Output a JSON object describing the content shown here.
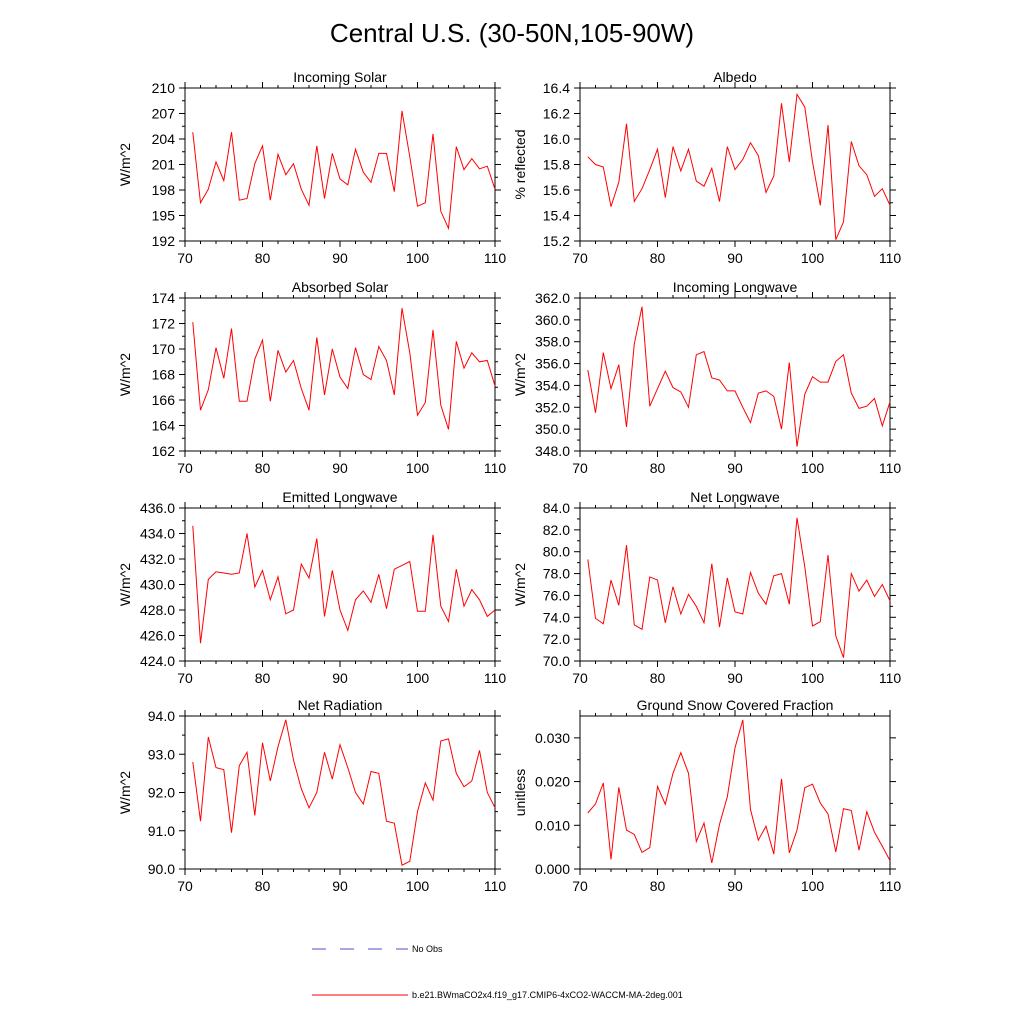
{
  "figure_title": "Central U.S. (30-50N,105-90W)",
  "colors": {
    "series": "#ff0000",
    "obs": "#4d4dcc",
    "frame": "#000000"
  },
  "legend": {
    "obs_label": "No Obs",
    "model_label": "b.e21.BWmaCO2x4.f19_g17.CMIP6-4xCO2-WACCM-MA-2deg.001"
  },
  "chart_data": [
    {
      "type": "line",
      "title": "Incoming Solar",
      "ylabel": "W/m^2",
      "xlim": [
        70,
        110
      ],
      "ylim": [
        192,
        210
      ],
      "yticks": [
        192,
        195,
        198,
        201,
        204,
        207,
        210
      ],
      "yticklabels": [
        "192",
        "195",
        "198",
        "201",
        "204",
        "207",
        "210"
      ],
      "xticks": [
        70,
        80,
        90,
        100,
        110
      ],
      "xticklabels": [
        "70",
        "80",
        "90",
        "100",
        "110"
      ],
      "x": [
        71,
        72,
        73,
        74,
        75,
        76,
        77,
        78,
        79,
        80,
        81,
        82,
        83,
        84,
        85,
        86,
        87,
        88,
        89,
        90,
        91,
        92,
        93,
        94,
        95,
        96,
        97,
        98,
        99,
        100,
        101,
        102,
        103,
        104,
        105,
        106,
        107,
        108,
        109,
        110
      ],
      "series": [
        {
          "name": "b.e21.BWmaCO2x4.f19_g17.CMIP6-4xCO2-WACCM-MA-2deg.001",
          "values": [
            204.8,
            196.5,
            198.1,
            201.3,
            199.1,
            204.8,
            196.8,
            197.0,
            201.1,
            203.2,
            196.8,
            202.2,
            199.8,
            201.1,
            198.1,
            196.2,
            203.2,
            197.0,
            202.3,
            199.3,
            198.6,
            202.8,
            200.1,
            198.9,
            202.3,
            202.3,
            197.8,
            207.3,
            201.9,
            196.1,
            196.5,
            204.6,
            195.5,
            193.5,
            203.1,
            200.4,
            201.7,
            200.5,
            200.8,
            198.1
          ]
        }
      ]
    },
    {
      "type": "line",
      "title": "Albedo",
      "ylabel": "% reflected",
      "xlim": [
        70,
        110
      ],
      "ylim": [
        15.2,
        16.4
      ],
      "yticks": [
        15.2,
        15.4,
        15.6,
        15.8,
        16.0,
        16.2,
        16.4
      ],
      "yticklabels": [
        "15.2",
        "15.4",
        "15.6",
        "15.8",
        "16.0",
        "16.2",
        "16.4"
      ],
      "xticks": [
        70,
        80,
        90,
        100,
        110
      ],
      "xticklabels": [
        "70",
        "80",
        "90",
        "100",
        "110"
      ],
      "x": [
        71,
        72,
        73,
        74,
        75,
        76,
        77,
        78,
        79,
        80,
        81,
        82,
        83,
        84,
        85,
        86,
        87,
        88,
        89,
        90,
        91,
        92,
        93,
        94,
        95,
        96,
        97,
        98,
        99,
        100,
        101,
        102,
        103,
        104,
        105,
        106,
        107,
        108,
        109,
        110
      ],
      "series": [
        {
          "name": "b.e21.BWmaCO2x4.f19_g17.CMIP6-4xCO2-WACCM-MA-2deg.001",
          "values": [
            15.86,
            15.8,
            15.78,
            15.47,
            15.66,
            16.12,
            15.51,
            15.61,
            15.76,
            15.92,
            15.54,
            15.94,
            15.75,
            15.92,
            15.67,
            15.63,
            15.77,
            15.51,
            15.94,
            15.76,
            15.84,
            15.97,
            15.87,
            15.58,
            15.71,
            16.28,
            15.82,
            16.35,
            16.25,
            15.82,
            15.48,
            16.11,
            15.21,
            15.35,
            15.98,
            15.79,
            15.72,
            15.55,
            15.61,
            15.48
          ]
        }
      ]
    },
    {
      "type": "line",
      "title": "Absorbed Solar",
      "ylabel": "W/m^2",
      "xlim": [
        70,
        110
      ],
      "ylim": [
        162,
        174
      ],
      "yticks": [
        162,
        164,
        166,
        168,
        170,
        172,
        174
      ],
      "yticklabels": [
        "162",
        "164",
        "166",
        "168",
        "170",
        "172",
        "174"
      ],
      "xticks": [
        70,
        80,
        90,
        100,
        110
      ],
      "xticklabels": [
        "70",
        "80",
        "90",
        "100",
        "110"
      ],
      "x": [
        71,
        72,
        73,
        74,
        75,
        76,
        77,
        78,
        79,
        80,
        81,
        82,
        83,
        84,
        85,
        86,
        87,
        88,
        89,
        90,
        91,
        92,
        93,
        94,
        95,
        96,
        97,
        98,
        99,
        100,
        101,
        102,
        103,
        104,
        105,
        106,
        107,
        108,
        109,
        110
      ],
      "series": [
        {
          "name": "b.e21.BWmaCO2x4.f19_g17.CMIP6-4xCO2-WACCM-MA-2deg.001",
          "values": [
            172.1,
            165.2,
            166.8,
            170.1,
            167.7,
            171.6,
            165.9,
            165.9,
            169.2,
            170.7,
            165.9,
            169.9,
            168.2,
            169.1,
            166.9,
            165.2,
            170.9,
            166.4,
            170.0,
            167.8,
            166.9,
            170.1,
            168.0,
            167.6,
            170.2,
            169.1,
            166.4,
            173.2,
            169.7,
            164.8,
            165.8,
            171.5,
            165.6,
            163.7,
            170.6,
            168.5,
            169.7,
            169.0,
            169.1,
            167.1
          ]
        }
      ]
    },
    {
      "type": "line",
      "title": "Incoming Longwave",
      "ylabel": "W/m^2",
      "xlim": [
        70,
        110
      ],
      "ylim": [
        348.0,
        362.0
      ],
      "yticks": [
        348,
        350,
        352,
        354,
        356,
        358,
        360,
        362
      ],
      "yticklabels": [
        "348.0",
        "350.0",
        "352.0",
        "354.0",
        "356.0",
        "358.0",
        "360.0",
        "362.0"
      ],
      "xticks": [
        70,
        80,
        90,
        100,
        110
      ],
      "xticklabels": [
        "70",
        "80",
        "90",
        "100",
        "110"
      ],
      "x": [
        71,
        72,
        73,
        74,
        75,
        76,
        77,
        78,
        79,
        80,
        81,
        82,
        83,
        84,
        85,
        86,
        87,
        88,
        89,
        90,
        91,
        92,
        93,
        94,
        95,
        96,
        97,
        98,
        99,
        100,
        101,
        102,
        103,
        104,
        105,
        106,
        107,
        108,
        109,
        110
      ],
      "series": [
        {
          "name": "b.e21.BWmaCO2x4.f19_g17.CMIP6-4xCO2-WACCM-MA-2deg.001",
          "values": [
            355.4,
            351.5,
            357.0,
            353.7,
            355.9,
            350.2,
            357.8,
            361.2,
            352.1,
            353.7,
            355.3,
            353.8,
            353.4,
            352.0,
            356.8,
            357.1,
            354.7,
            354.5,
            353.5,
            353.5,
            352.0,
            350.6,
            353.3,
            353.5,
            353.0,
            350.0,
            356.1,
            348.4,
            353.2,
            354.8,
            354.3,
            354.3,
            356.2,
            356.8,
            353.3,
            351.9,
            352.1,
            352.8,
            350.3,
            352.5
          ]
        }
      ]
    },
    {
      "type": "line",
      "title": "Emitted Longwave",
      "ylabel": "W/m^2",
      "xlim": [
        70,
        110
      ],
      "ylim": [
        424.0,
        436.0
      ],
      "yticks": [
        424,
        426,
        428,
        430,
        432,
        434,
        436
      ],
      "yticklabels": [
        "424.0",
        "426.0",
        "428.0",
        "430.0",
        "432.0",
        "434.0",
        "436.0"
      ],
      "xticks": [
        70,
        80,
        90,
        100,
        110
      ],
      "xticklabels": [
        "70",
        "80",
        "90",
        "100",
        "110"
      ],
      "x": [
        71,
        72,
        73,
        74,
        75,
        76,
        77,
        78,
        79,
        80,
        81,
        82,
        83,
        84,
        85,
        86,
        87,
        88,
        89,
        90,
        91,
        92,
        93,
        94,
        95,
        96,
        97,
        98,
        99,
        100,
        101,
        102,
        103,
        104,
        105,
        106,
        107,
        108,
        109,
        110
      ],
      "series": [
        {
          "name": "b.e21.BWmaCO2x4.f19_g17.CMIP6-4xCO2-WACCM-MA-2deg.001",
          "values": [
            434.6,
            425.4,
            430.4,
            431.0,
            430.9,
            430.8,
            430.9,
            434.0,
            429.8,
            431.1,
            428.8,
            430.6,
            427.7,
            428.0,
            431.6,
            430.5,
            433.6,
            427.5,
            431.1,
            428.0,
            426.4,
            428.8,
            429.5,
            428.6,
            430.8,
            428.1,
            431.2,
            431.5,
            431.8,
            427.9,
            427.9,
            433.9,
            428.3,
            427.1,
            431.2,
            428.3,
            429.6,
            428.8,
            427.5,
            428.0
          ]
        }
      ]
    },
    {
      "type": "line",
      "title": "Net Longwave",
      "ylabel": "W/m^2",
      "xlim": [
        70,
        110
      ],
      "ylim": [
        70.0,
        84.0
      ],
      "yticks": [
        70,
        72,
        74,
        76,
        78,
        80,
        82,
        84
      ],
      "yticklabels": [
        "70.0",
        "72.0",
        "74.0",
        "76.0",
        "78.0",
        "80.0",
        "82.0",
        "84.0"
      ],
      "xticks": [
        70,
        80,
        90,
        100,
        110
      ],
      "xticklabels": [
        "70",
        "80",
        "90",
        "100",
        "110"
      ],
      "x": [
        71,
        72,
        73,
        74,
        75,
        76,
        77,
        78,
        79,
        80,
        81,
        82,
        83,
        84,
        85,
        86,
        87,
        88,
        89,
        90,
        91,
        92,
        93,
        94,
        95,
        96,
        97,
        98,
        99,
        100,
        101,
        102,
        103,
        104,
        105,
        106,
        107,
        108,
        109,
        110
      ],
      "series": [
        {
          "name": "b.e21.BWmaCO2x4.f19_g17.CMIP6-4xCO2-WACCM-MA-2deg.001",
          "values": [
            79.3,
            73.9,
            73.4,
            77.4,
            75.1,
            80.6,
            73.3,
            72.9,
            77.7,
            77.4,
            73.5,
            76.8,
            74.3,
            76.1,
            75.0,
            73.5,
            78.9,
            73.1,
            77.6,
            74.5,
            74.3,
            78.1,
            76.2,
            75.2,
            77.8,
            78.0,
            75.2,
            83.1,
            78.6,
            73.2,
            73.6,
            79.7,
            72.3,
            70.3,
            78.0,
            76.4,
            77.4,
            75.9,
            77.0,
            75.5
          ]
        }
      ]
    },
    {
      "type": "line",
      "title": "Net Radiation",
      "ylabel": "W/m^2",
      "xlim": [
        70,
        110
      ],
      "ylim": [
        90.0,
        94.0
      ],
      "yticks": [
        90,
        91,
        92,
        93,
        94
      ],
      "yticklabels": [
        "90.0",
        "91.0",
        "92.0",
        "93.0",
        "94.0"
      ],
      "xticks": [
        70,
        80,
        90,
        100,
        110
      ],
      "xticklabels": [
        "70",
        "80",
        "90",
        "100",
        "110"
      ],
      "x": [
        71,
        72,
        73,
        74,
        75,
        76,
        77,
        78,
        79,
        80,
        81,
        82,
        83,
        84,
        85,
        86,
        87,
        88,
        89,
        90,
        91,
        92,
        93,
        94,
        95,
        96,
        97,
        98,
        99,
        100,
        101,
        102,
        103,
        104,
        105,
        106,
        107,
        108,
        109,
        110
      ],
      "series": [
        {
          "name": "b.e21.BWmaCO2x4.f19_g17.CMIP6-4xCO2-WACCM-MA-2deg.001",
          "values": [
            92.8,
            91.25,
            93.45,
            92.65,
            92.6,
            90.95,
            92.7,
            93.05,
            91.4,
            93.3,
            92.3,
            93.2,
            93.9,
            92.85,
            92.1,
            91.6,
            92.0,
            93.05,
            92.35,
            93.25,
            92.65,
            92.0,
            91.7,
            92.55,
            92.5,
            91.25,
            91.2,
            90.1,
            90.2,
            91.5,
            92.25,
            91.8,
            93.35,
            93.4,
            92.5,
            92.15,
            92.3,
            93.1,
            92.0,
            91.6
          ]
        }
      ]
    },
    {
      "type": "line",
      "title": "Ground Snow Covered Fraction",
      "ylabel": "unitless",
      "xlim": [
        70,
        110
      ],
      "ylim": [
        0.0,
        0.035
      ],
      "yticks": [
        0.0,
        0.01,
        0.02,
        0.03
      ],
      "yticklabels": [
        "0.000",
        "0.010",
        "0.020",
        "0.030"
      ],
      "xticks": [
        70,
        80,
        90,
        100,
        110
      ],
      "xticklabels": [
        "70",
        "80",
        "90",
        "100",
        "110"
      ],
      "x": [
        71,
        72,
        73,
        74,
        75,
        76,
        77,
        78,
        79,
        80,
        81,
        82,
        83,
        84,
        85,
        86,
        87,
        88,
        89,
        90,
        91,
        92,
        93,
        94,
        95,
        96,
        97,
        98,
        99,
        100,
        101,
        102,
        103,
        104,
        105,
        106,
        107,
        108,
        109,
        110
      ],
      "series": [
        {
          "name": "b.e21.BWmaCO2x4.f19_g17.CMIP6-4xCO2-WACCM-MA-2deg.001",
          "values": [
            0.0128,
            0.0149,
            0.0197,
            0.0022,
            0.0187,
            0.0089,
            0.0079,
            0.0038,
            0.0049,
            0.0189,
            0.0148,
            0.0219,
            0.0266,
            0.0219,
            0.0063,
            0.0105,
            0.0014,
            0.0102,
            0.0165,
            0.0277,
            0.0341,
            0.0136,
            0.0066,
            0.0098,
            0.0034,
            0.0206,
            0.0037,
            0.0089,
            0.0186,
            0.0194,
            0.0151,
            0.0126,
            0.0039,
            0.0138,
            0.0134,
            0.0043,
            0.0131,
            0.0084,
            0.0052,
            0.0019
          ]
        }
      ]
    }
  ]
}
